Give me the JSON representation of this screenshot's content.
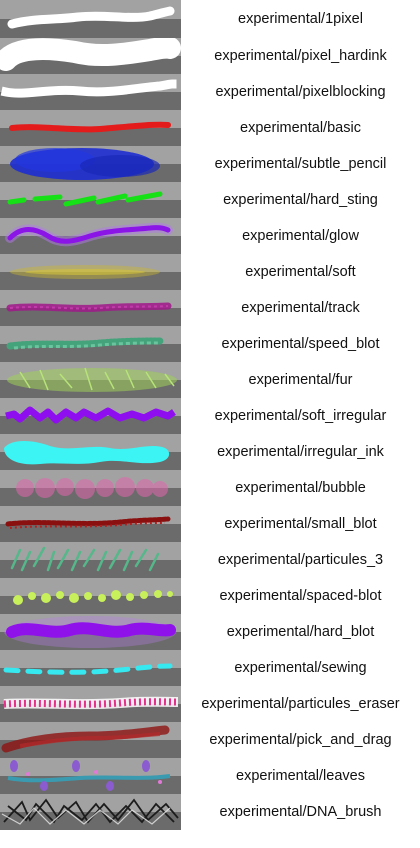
{
  "brushes": [
    {
      "name": "experimental/1pixel",
      "icon": "stroke-1pixel",
      "color": "#ffffff"
    },
    {
      "name": "experimental/pixel_hardink",
      "icon": "stroke-hardink",
      "color": "#ffffff"
    },
    {
      "name": "experimental/pixelblocking",
      "icon": "stroke-pixelblocking",
      "color": "#ffffff"
    },
    {
      "name": "experimental/basic",
      "icon": "stroke-basic",
      "color": "#e41b1b"
    },
    {
      "name": "experimental/subtle_pencil",
      "icon": "stroke-subtle-pencil",
      "color": "#1e2fd0"
    },
    {
      "name": "experimental/hard_sting",
      "icon": "stroke-hard-sting",
      "color": "#16e016"
    },
    {
      "name": "experimental/glow",
      "icon": "stroke-glow",
      "color": "#8b14e6"
    },
    {
      "name": "experimental/soft",
      "icon": "stroke-soft",
      "color": "#c8b630"
    },
    {
      "name": "experimental/track",
      "icon": "stroke-track",
      "color": "#a0178a"
    },
    {
      "name": "experimental/speed_blot",
      "icon": "stroke-speed-blot",
      "color": "#45a37c"
    },
    {
      "name": "experimental/fur",
      "icon": "stroke-fur",
      "color": "#9fd05a"
    },
    {
      "name": "experimental/soft_irregular",
      "icon": "stroke-soft-irregular",
      "color": "#8f0ef0"
    },
    {
      "name": "experimental/irregular_ink",
      "icon": "stroke-irregular-ink",
      "color": "#3cf4f4"
    },
    {
      "name": "experimental/bubble",
      "icon": "stroke-bubble",
      "color": "#e266ae"
    },
    {
      "name": "experimental/small_blot",
      "icon": "stroke-small-blot",
      "color": "#8a1010"
    },
    {
      "name": "experimental/particules_3",
      "icon": "stroke-particules-3",
      "color": "#55b78a"
    },
    {
      "name": "experimental/spaced-blot",
      "icon": "stroke-spaced-blot",
      "color": "#c8f05a"
    },
    {
      "name": "experimental/hard_blot",
      "icon": "stroke-hard-blot",
      "color": "#8f12ea"
    },
    {
      "name": "experimental/sewing",
      "icon": "stroke-sewing",
      "color": "#36e8f0"
    },
    {
      "name": "experimental/particules_eraser",
      "icon": "stroke-particules-eraser",
      "color": "#e62f8a"
    },
    {
      "name": "experimental/pick_and_drag",
      "icon": "stroke-pick-and-drag",
      "color": "#8e1414"
    },
    {
      "name": "experimental/leaves",
      "icon": "stroke-leaves",
      "color": "#3a9bb0"
    },
    {
      "name": "experimental/DNA_brush",
      "icon": "stroke-dna-brush",
      "color": "#2a2a2a"
    }
  ]
}
